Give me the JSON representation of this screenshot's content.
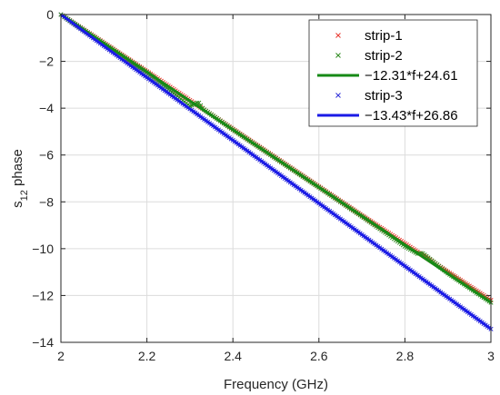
{
  "chart_data": {
    "type": "scatter",
    "title": "",
    "xlabel": "Frequency (GHz)",
    "ylabel_main": "s",
    "ylabel_sub": "12",
    "ylabel_rest": " phase",
    "xlim": [
      2,
      3
    ],
    "ylim": [
      -14,
      0
    ],
    "xticks": [
      2,
      2.2,
      2.4,
      2.6,
      2.8,
      3
    ],
    "xtick_labels": [
      "2",
      "2.2",
      "2.4",
      "2.6",
      "2.8",
      "3"
    ],
    "yticks": [
      0,
      -2,
      -4,
      -6,
      -8,
      -10,
      -12,
      -14
    ],
    "ytick_labels": [
      "0",
      "−2",
      "−4",
      "−6",
      "−8",
      "−10",
      "−12",
      "−14"
    ],
    "grid": true,
    "legend_position": "top-right",
    "series": [
      {
        "name": "strip-1",
        "kind": "markers",
        "marker": "x",
        "color": "#e8372d",
        "x": [
          2.0,
          2.1,
          2.2,
          2.3,
          2.4,
          2.5,
          2.6,
          2.7,
          2.8,
          2.9,
          3.0
        ],
        "y": [
          0.0,
          -1.21,
          -2.43,
          -3.66,
          -4.89,
          -6.12,
          -7.35,
          -8.58,
          -9.78,
          -10.99,
          -12.2
        ]
      },
      {
        "name": "strip-2",
        "kind": "markers",
        "marker": "x",
        "color": "#2e8b1f",
        "x": [
          2.0,
          2.1,
          2.2,
          2.3,
          2.31,
          2.32,
          2.33,
          2.4,
          2.5,
          2.6,
          2.7,
          2.8,
          2.83,
          2.84,
          2.9,
          3.0
        ],
        "y": [
          0.0,
          -1.24,
          -2.47,
          -3.9,
          -3.83,
          -3.75,
          -4.02,
          -4.92,
          -6.15,
          -7.38,
          -8.62,
          -9.9,
          -10.22,
          -10.18,
          -11.05,
          -12.3
        ]
      },
      {
        "name": "−12.31*f+24.61",
        "kind": "line",
        "color": "#168a16",
        "x": [
          2.0,
          3.0
        ],
        "y": [
          0.0,
          -12.3
        ]
      },
      {
        "name": "strip-3",
        "kind": "markers",
        "marker": "x",
        "color": "#2f2fd8",
        "x": [
          2.0,
          2.1,
          2.2,
          2.3,
          2.4,
          2.5,
          2.6,
          2.7,
          2.8,
          2.9,
          3.0
        ],
        "y": [
          0.0,
          -1.34,
          -2.69,
          -4.03,
          -5.37,
          -6.72,
          -8.06,
          -9.4,
          -10.74,
          -12.09,
          -13.43
        ]
      },
      {
        "name": "−13.43*f+26.86",
        "kind": "line",
        "color": "#1a1ae6",
        "x": [
          2.0,
          3.0
        ],
        "y": [
          0.0,
          -13.43
        ]
      }
    ]
  }
}
